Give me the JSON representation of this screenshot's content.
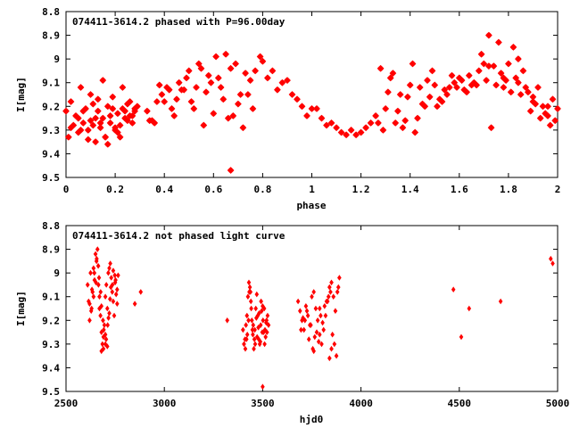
{
  "chart_data": [
    {
      "type": "scatter",
      "title": "074411-3614.2 phased with P=96.00day",
      "xlabel": "phase",
      "ylabel": "I[mag]",
      "xlim": [
        0,
        2
      ],
      "ylim": [
        9.5,
        8.8
      ],
      "y_inverted": true,
      "grid": false,
      "xticks": [
        "0",
        "0.2",
        "0.4",
        "0.6",
        "0.8",
        "1",
        "1.2",
        "1.4",
        "1.6",
        "1.8",
        "2"
      ],
      "yticks": [
        "8.8",
        "8.9",
        "9",
        "9.1",
        "9.2",
        "9.3",
        "9.4",
        "9.5"
      ],
      "color": "#ff0000",
      "marker": "star",
      "series": [
        {
          "x": [
            0.0,
            0.01,
            0.02,
            0.03,
            0.04,
            0.05,
            0.06,
            0.07,
            0.08,
            0.09,
            0.1,
            0.11,
            0.12,
            0.13,
            0.14,
            0.15,
            0.16,
            0.17,
            0.18,
            0.19,
            0.2,
            0.21,
            0.22,
            0.23,
            0.24,
            0.25,
            0.26,
            0.27,
            0.28,
            0.29,
            0.02,
            0.05,
            0.07,
            0.09,
            0.11,
            0.13,
            0.15,
            0.17,
            0.19,
            0.21,
            0.23,
            0.25,
            0.27,
            0.06,
            0.1,
            0.14,
            0.18,
            0.22,
            0.26,
            0.12,
            0.16,
            0.2,
            0.24,
            0.28,
            0.33,
            0.35,
            0.37,
            0.39,
            0.41,
            0.43,
            0.45,
            0.47,
            0.49,
            0.51,
            0.53,
            0.55,
            0.57,
            0.59,
            0.61,
            0.63,
            0.65,
            0.67,
            0.69,
            0.71,
            0.73,
            0.75,
            0.77,
            0.79,
            0.36,
            0.4,
            0.44,
            0.48,
            0.52,
            0.56,
            0.6,
            0.64,
            0.68,
            0.72,
            0.76,
            0.62,
            0.66,
            0.7,
            0.74,
            0.58,
            0.54,
            0.5,
            0.46,
            0.42,
            0.38,
            0.34,
            0.67,
            0.8,
            0.82,
            0.84,
            0.86,
            0.88,
            0.9,
            0.92,
            0.94,
            0.96,
            0.98,
            1.0,
            1.02,
            1.04,
            1.06,
            1.08,
            1.1,
            1.12,
            1.14,
            1.16,
            1.18,
            1.2,
            1.22,
            1.24,
            1.26,
            1.28,
            1.3,
            1.32,
            1.34,
            1.36,
            1.38,
            1.4,
            1.42,
            1.44,
            1.46,
            1.48,
            1.5,
            1.52,
            1.54,
            1.56,
            1.58,
            1.6,
            1.62,
            1.64,
            1.66,
            1.68,
            1.7,
            1.27,
            1.31,
            1.35,
            1.39,
            1.43,
            1.47,
            1.51,
            1.55,
            1.59,
            1.63,
            1.67,
            1.71,
            1.29,
            1.33,
            1.37,
            1.41,
            1.45,
            1.49,
            1.53,
            1.57,
            1.61,
            1.65,
            1.69,
            1.72,
            1.74,
            1.76,
            1.78,
            1.8,
            1.82,
            1.84,
            1.86,
            1.88,
            1.9,
            1.92,
            1.94,
            1.96,
            1.98,
            2.0,
            1.73,
            1.75,
            1.77,
            1.79,
            1.81,
            1.83,
            1.85,
            1.87,
            1.89,
            1.91,
            1.93,
            1.95,
            1.97,
            1.99,
            1.72,
            1.78,
            1.84,
            1.9,
            1.96
          ],
          "y": [
            9.22,
            9.33,
            9.18,
            9.28,
            9.24,
            9.31,
            9.12,
            9.27,
            9.21,
            9.3,
            9.26,
            9.19,
            9.35,
            9.22,
            9.29,
            9.25,
            9.33,
            9.2,
            9.27,
            9.16,
            9.3,
            9.23,
            9.28,
            9.21,
            9.25,
            9.19,
            9.24,
            9.27,
            9.22,
            9.2,
            9.29,
            9.25,
            9.22,
            9.34,
            9.28,
            9.17,
            9.09,
            9.36,
            9.21,
            9.31,
            9.12,
            9.26,
            9.24,
            9.3,
            9.15,
            9.27,
            9.24,
            9.33,
            9.18,
            9.25,
            9.33,
            9.29,
            9.22,
            9.21,
            9.22,
            9.26,
            9.18,
            9.15,
            9.12,
            9.21,
            9.17,
            9.13,
            9.08,
            9.18,
            9.12,
            9.04,
            9.14,
            9.1,
            8.99,
            9.12,
            8.98,
            9.04,
            9.02,
            9.15,
            9.06,
            9.09,
            9.05,
            8.99,
            9.27,
            9.18,
            9.24,
            9.13,
            9.21,
            9.28,
            9.23,
            9.17,
            9.24,
            9.29,
            9.21,
            9.08,
            9.25,
            9.19,
            9.15,
            9.07,
            9.02,
            9.05,
            9.1,
            9.13,
            9.11,
            9.26,
            9.47,
            9.01,
            9.08,
            9.05,
            9.13,
            9.1,
            9.09,
            9.15,
            9.17,
            9.2,
            9.24,
            9.21,
            9.21,
            9.25,
            9.28,
            9.27,
            9.29,
            9.31,
            9.32,
            9.3,
            9.32,
            9.31,
            9.29,
            9.27,
            9.24,
            9.04,
            9.21,
            9.08,
            9.27,
            9.15,
            9.26,
            9.11,
            9.31,
            9.12,
            9.2,
            9.16,
            9.11,
            9.17,
            9.13,
            9.12,
            9.1,
            9.08,
            9.13,
            9.07,
            9.1,
            9.05,
            9.02,
            9.27,
            9.14,
            9.22,
            9.16,
            9.25,
            9.09,
            9.2,
            9.15,
            9.12,
            9.14,
            9.11,
            9.09,
            9.3,
            9.06,
            9.29,
            9.02,
            9.19,
            9.05,
            9.18,
            9.07,
            9.09,
            9.11,
            8.98,
            8.9,
            9.03,
            8.93,
            9.08,
            9.02,
            8.95,
            9.1,
            9.05,
            9.14,
            9.18,
            9.12,
            9.2,
            9.24,
            9.17,
            9.21,
            9.29,
            9.11,
            9.06,
            9.09,
            9.14,
            9.08,
            9.15,
            9.12,
            9.22,
            9.19,
            9.25,
            9.23,
            9.28,
            9.26,
            9.03,
            9.12,
            9.0,
            9.16,
            9.2
          ]
        }
      ]
    },
    {
      "type": "scatter",
      "title": "074411-3614.2 not phased light curve",
      "xlabel": "hjd0",
      "ylabel": "I[mag]",
      "xlim": [
        2500,
        5000
      ],
      "ylim": [
        9.5,
        8.8
      ],
      "y_inverted": true,
      "grid": false,
      "xticks": [
        "2500",
        "3000",
        "3500",
        "4000",
        "4500",
        "5000"
      ],
      "yticks": [
        "8.8",
        "8.9",
        "9",
        "9.1",
        "9.2",
        "9.3",
        "9.4",
        "9.5"
      ],
      "color": "#ff0000",
      "marker": "diamond",
      "series": [
        {
          "x": [
            2610,
            2615,
            2620,
            2625,
            2630,
            2635,
            2640,
            2645,
            2650,
            2655,
            2660,
            2665,
            2670,
            2675,
            2680,
            2685,
            2690,
            2695,
            2700,
            2705,
            2710,
            2715,
            2720,
            2725,
            2730,
            2735,
            2740,
            2745,
            2750,
            2755,
            2760,
            2765,
            2620,
            2632,
            2644,
            2656,
            2668,
            2680,
            2692,
            2704,
            2716,
            2728,
            2740,
            2752,
            2628,
            2640,
            2652,
            2664,
            2676,
            2688,
            2700,
            2712,
            2724,
            2736,
            2748,
            2760,
            2670,
            2690,
            2710,
            2680,
            2700,
            2720,
            2850,
            2880,
            3320,
            3400,
            3405,
            3410,
            3415,
            3420,
            3425,
            3430,
            3435,
            3440,
            3445,
            3450,
            3455,
            3460,
            3465,
            3470,
            3475,
            3480,
            3485,
            3490,
            3495,
            3500,
            3505,
            3510,
            3515,
            3520,
            3525,
            3530,
            3412,
            3422,
            3432,
            3442,
            3452,
            3462,
            3472,
            3482,
            3492,
            3502,
            3512,
            3522,
            3418,
            3428,
            3438,
            3448,
            3458,
            3468,
            3478,
            3488,
            3498,
            3508,
            3518,
            3500,
            3680,
            3690,
            3700,
            3710,
            3720,
            3730,
            3740,
            3750,
            3760,
            3770,
            3780,
            3790,
            3800,
            3810,
            3820,
            3830,
            3840,
            3850,
            3860,
            3870,
            3880,
            3890,
            3695,
            3715,
            3735,
            3755,
            3775,
            3795,
            3815,
            3835,
            3855,
            3875,
            3705,
            3725,
            3745,
            3765,
            3785,
            3805,
            3825,
            3845,
            3865,
            3885,
            3760,
            3790,
            3840,
            3850,
            4470,
            4510,
            4550,
            4710,
            4965,
            4975
          ],
          "y": [
            9.05,
            9.12,
            9.2,
            9.0,
            9.15,
            9.08,
            8.98,
            9.03,
            8.92,
            8.95,
            8.9,
            9.05,
            9.1,
            9.18,
            9.25,
            9.3,
            9.32,
            9.22,
            9.1,
            9.05,
            9.15,
            9.0,
            8.98,
            8.96,
            9.02,
            9.08,
            9.12,
            9.18,
            9.04,
            9.09,
            9.13,
            9.01,
            9.13,
            9.07,
            9.0,
            8.94,
            9.02,
            9.14,
            9.24,
            9.28,
            9.19,
            9.06,
            8.99,
            9.03,
            9.16,
            9.1,
            9.04,
            8.97,
            9.08,
            9.2,
            9.3,
            9.22,
            9.11,
            9.05,
            9.01,
            9.07,
            9.15,
            9.27,
            9.31,
            9.33,
            9.26,
            9.17,
            9.13,
            9.08,
            9.2,
            9.24,
            9.3,
            9.28,
            9.22,
            9.18,
            9.1,
            9.04,
            9.06,
            9.12,
            9.2,
            9.26,
            9.32,
            9.24,
            9.15,
            9.09,
            9.18,
            9.28,
            9.3,
            9.22,
            9.16,
            9.14,
            9.25,
            9.3,
            9.27,
            9.2,
            9.18,
            9.22,
            9.32,
            9.26,
            9.08,
            9.15,
            9.22,
            9.3,
            9.27,
            9.17,
            9.12,
            9.2,
            9.24,
            9.25,
            9.28,
            9.2,
            9.08,
            9.24,
            9.28,
            9.19,
            9.23,
            9.29,
            9.25,
            9.15,
            9.21,
            9.48,
            9.12,
            9.16,
            9.2,
            9.24,
            9.14,
            9.18,
            9.22,
            9.1,
            9.08,
            9.15,
            9.2,
            9.26,
            9.3,
            9.24,
            9.18,
            9.12,
            9.06,
            9.04,
            9.1,
            9.16,
            9.08,
            9.02,
            9.24,
            9.2,
            9.28,
            9.32,
            9.25,
            9.18,
            9.14,
            9.1,
            9.26,
            9.35,
            9.19,
            9.16,
            9.22,
            9.27,
            9.29,
            9.21,
            9.12,
            9.08,
            9.3,
            9.06,
            9.33,
            9.15,
            9.36,
            9.32,
            9.07,
            9.27,
            9.15,
            9.12,
            8.94,
            8.96
          ]
        }
      ]
    }
  ]
}
